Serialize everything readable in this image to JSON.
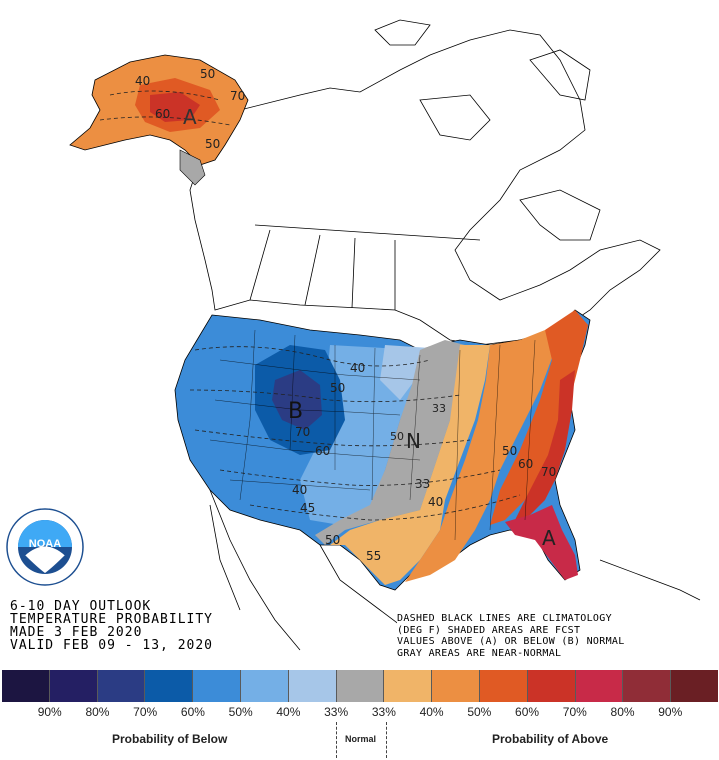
{
  "title": {
    "line1": "6-10 DAY OUTLOOK",
    "line2": "TEMPERATURE PROBABILITY",
    "line3": "MADE  3 FEB 2020",
    "line4": "VALID  FEB 09 - 13, 2020"
  },
  "notes": {
    "line1": "DASHED BLACK LINES ARE CLIMATOLOGY",
    "line2": "(DEG F) SHADED AREAS ARE FCST",
    "line3": "VALUES ABOVE (A) OR BELOW (B) NORMAL",
    "line4": "GRAY AREAS ARE NEAR-NORMAL"
  },
  "logo": {
    "text": "NOAA",
    "ring_text": "NATIONAL OCEANIC AND ATMOSPHERIC ADMINISTRATION · U.S. DEPARTMENT OF COMMERCE"
  },
  "map_labels": {
    "alaska_letter": "A",
    "west_letter": "B",
    "central_letter": "N",
    "southeast_letter": "A",
    "ak_40": "40",
    "ak_50": "50",
    "ak_60": "60",
    "ak_70": "70",
    "ak_50b": "50",
    "w_40": "40",
    "w_50": "50",
    "w_70": "70",
    "w_60": "60",
    "w_40b": "40",
    "w_45": "45",
    "w_50b": "50",
    "c_33": "33",
    "c_33b": "33",
    "c_40": "40",
    "c_55": "55",
    "c_50": "50",
    "se_50": "50",
    "se_60": "60",
    "se_70": "70"
  },
  "legend": {
    "colors": [
      "#1c1541",
      "#241f63",
      "#2b3c84",
      "#0c5ba8",
      "#3c8cd8",
      "#74afe6",
      "#a6c6e8",
      "#a8a8a8",
      "#f0b468",
      "#ec8f42",
      "#e05a24",
      "#cb3327",
      "#c82a48",
      "#902d37",
      "#6a1f24"
    ],
    "ticks": [
      "90%",
      "80%",
      "70%",
      "60%",
      "50%",
      "40%",
      "33%",
      "33%",
      "40%",
      "50%",
      "60%",
      "70%",
      "80%",
      "90%"
    ],
    "below_label": "Probability of Below",
    "normal_label": "Normal",
    "above_label": "Probability of Above"
  }
}
